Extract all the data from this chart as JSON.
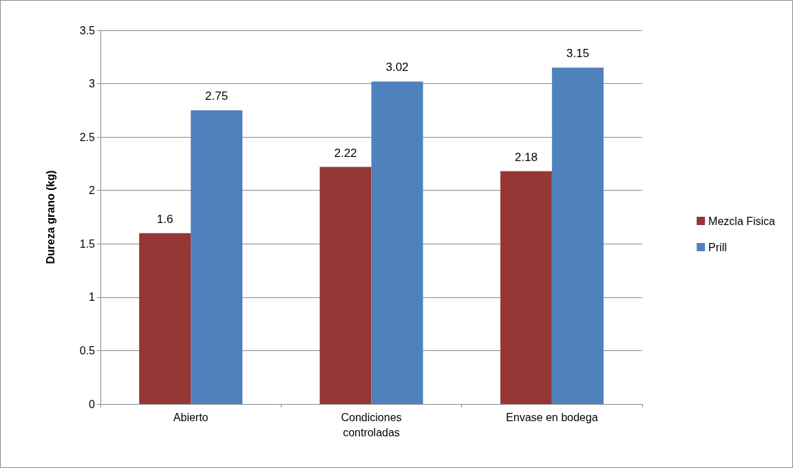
{
  "chart_data": {
    "type": "bar",
    "ylabel": "Dureza grano (kg)",
    "categories": [
      "Abierto",
      "Condiciones\ncontroladas",
      "Envase en bodega"
    ],
    "series": [
      {
        "name": "Mezcla Fisica",
        "color": "#953735",
        "values": [
          1.6,
          2.22,
          2.18
        ]
      },
      {
        "name": "Prill",
        "color": "#4f81bd",
        "values": [
          2.75,
          3.02,
          3.15
        ]
      }
    ],
    "ylim": [
      0,
      3.5
    ],
    "yticks": [
      0,
      0.5,
      1,
      1.5,
      2,
      2.5,
      3,
      3.5
    ],
    "grid": "y",
    "legend": "right",
    "data_labels": true
  }
}
